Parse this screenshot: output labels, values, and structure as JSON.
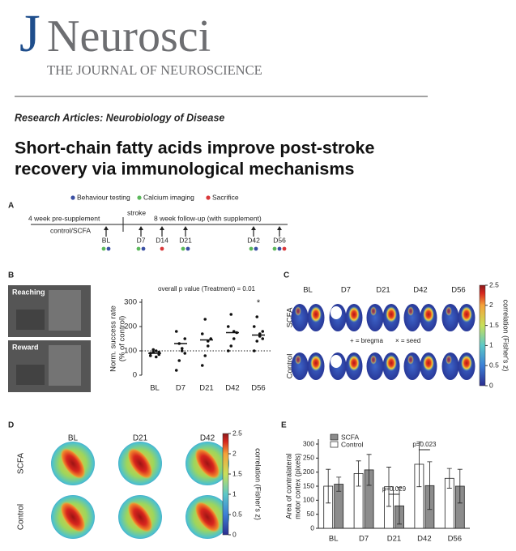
{
  "header": {
    "logo_j": "J",
    "logo_rest": "Neurosci",
    "journal": "THE JOURNAL OF NEUROSCIENCE"
  },
  "section": "Research Articles: Neurobiology of Disease",
  "title_lines": [
    "Short-chain fatty acids improve post-stroke",
    "recovery via immunological mechanisms"
  ],
  "panel_labels": [
    "A",
    "B",
    "C",
    "D",
    "E"
  ],
  "panel_a": {
    "legend": [
      {
        "text": "Behaviour testing",
        "color": "#3a4fa3"
      },
      {
        "text": "Calcium imaging",
        "color": "#5cb85c"
      },
      {
        "text": "Sacrifice",
        "color": "#d9383a"
      }
    ],
    "pre": "4 week pre-supplement",
    "stroke": "stroke",
    "post": "8 week follow-up (with supplement)",
    "group": "control/SCFA",
    "timepoints": [
      {
        "label": "BL",
        "dots": [
          "#5cb85c",
          "#3a4fa3"
        ]
      },
      {
        "label": "D7",
        "dots": [
          "#5cb85c",
          "#3a4fa3"
        ]
      },
      {
        "label": "D14",
        "dots": [
          "#d9383a"
        ]
      },
      {
        "label": "D21",
        "dots": [
          "#5cb85c",
          "#3a4fa3"
        ]
      },
      {
        "label": "D42",
        "dots": [
          "#5cb85c",
          "#3a4fa3"
        ]
      },
      {
        "label": "D56",
        "dots": [
          "#5cb85c",
          "#3a4fa3",
          "#d9383a"
        ]
      }
    ]
  },
  "panel_b": {
    "photo_labels": [
      "Reaching",
      "Reward"
    ]
  },
  "panel_c": {
    "columns": [
      "BL",
      "D7",
      "D21",
      "D42",
      "D56"
    ],
    "rows": [
      "SCFA",
      "Control"
    ],
    "legend": [
      "+ = bregma",
      "× = seed"
    ],
    "colorbar": {
      "ylim": [
        0,
        2.5
      ],
      "yticks": [
        0,
        0.5,
        1,
        1.5,
        2,
        2.5
      ],
      "label": "correlation (Fisher's z)"
    }
  },
  "panel_d": {
    "columns": [
      "BL",
      "D21",
      "D42"
    ],
    "rows": [
      "SCFA",
      "Control"
    ],
    "colorbar": {
      "ylim": [
        0,
        2.5
      ],
      "yticks": [
        0,
        0.5,
        1,
        1.5,
        2,
        2.5
      ],
      "label": "correlation (Fisher's z)"
    }
  },
  "chart_data": [
    {
      "type": "scatter",
      "annotation": "overall p value (Treatment) = 0.01",
      "star": "*",
      "y_label_lines": [
        "Norm. success rate",
        "(% of control)"
      ],
      "categories": [
        "BL",
        "D7",
        "D21",
        "D42",
        "D56"
      ],
      "points": [
        [
          80,
          95,
          100,
          85,
          90,
          105,
          75,
          95
        ],
        [
          20,
          60,
          100,
          150,
          180,
          130,
          110,
          90
        ],
        [
          40,
          80,
          120,
          150,
          170,
          230,
          140
        ],
        [
          100,
          120,
          150,
          175,
          200,
          250,
          180
        ],
        [
          100,
          140,
          160,
          180,
          200,
          240,
          170,
          150
        ]
      ],
      "means": [
        90,
        130,
        145,
        175,
        165
      ],
      "reference_line": 100,
      "ylim": [
        0,
        300
      ],
      "yticks": [
        0,
        100,
        200,
        300
      ]
    },
    {
      "type": "bar",
      "y_label_lines": [
        "Area of contralateral",
        "motor cortex (pixels)"
      ],
      "categories": [
        "BL",
        "D7",
        "D21",
        "D42",
        "D56"
      ],
      "series": [
        {
          "name": "SCFA",
          "color": "#8c8c8c",
          "values": [
            157,
            208,
            80,
            152,
            150
          ],
          "errors": [
            25,
            55,
            65,
            85,
            60
          ]
        },
        {
          "name": "Control",
          "color": "#ffffff",
          "values": [
            150,
            195,
            148,
            228,
            178
          ],
          "errors": [
            60,
            45,
            70,
            80,
            35
          ]
        }
      ],
      "annotations": [
        "p=0.029",
        "p=0.023"
      ],
      "ylim": [
        0,
        300
      ],
      "yticks": [
        0,
        50,
        100,
        150,
        200,
        250,
        300
      ]
    }
  ]
}
